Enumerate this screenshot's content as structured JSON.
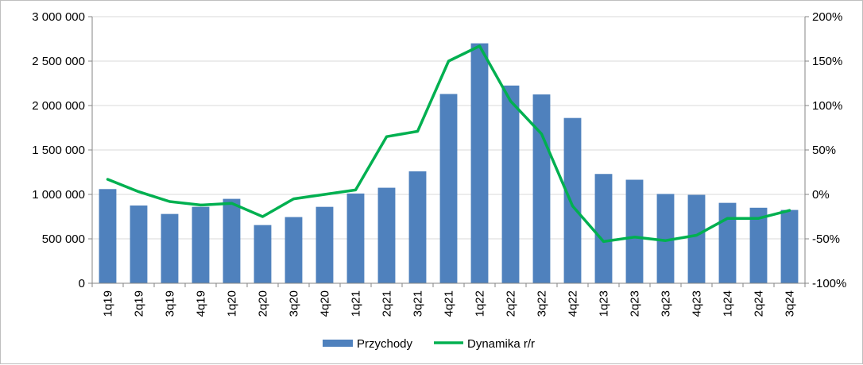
{
  "chart_data": {
    "type": "bar",
    "title": "",
    "xlabel": "",
    "ylabel": "",
    "categories": [
      "1q19",
      "2q19",
      "3q19",
      "4q19",
      "1q20",
      "2q20",
      "3q20",
      "4q20",
      "1q21",
      "2q21",
      "3q21",
      "4q21",
      "1q22",
      "2q22",
      "3q22",
      "4q22",
      "1q23",
      "2q23",
      "3q23",
      "4q23",
      "1q24",
      "2q24",
      "3q24"
    ],
    "ylim": [
      0,
      3000000
    ],
    "y2lim": [
      -100,
      200
    ],
    "y_ticks": [
      "0",
      "500 000",
      "1 000 000",
      "1 500 000",
      "2 000 000",
      "2 500 000",
      "3 000 000"
    ],
    "y2_ticks": [
      "-100%",
      "-50%",
      "0%",
      "50%",
      "100%",
      "150%",
      "200%"
    ],
    "grid": true,
    "legend_position": "bottom",
    "series": [
      {
        "name": "Przychody",
        "type": "bar",
        "axis": "left",
        "color": "#4f81bd",
        "values": [
          1060000,
          875000,
          780000,
          860000,
          950000,
          655000,
          745000,
          860000,
          1010000,
          1075000,
          1260000,
          2130000,
          2700000,
          2225000,
          2125000,
          1860000,
          1230000,
          1165000,
          1005000,
          995000,
          905000,
          850000,
          825000
        ]
      },
      {
        "name": "Dynamika r/r",
        "type": "line",
        "axis": "right",
        "color": "#00b050",
        "values": [
          17,
          3,
          -8,
          -12,
          -10,
          -25,
          -5,
          0,
          5,
          65,
          71,
          150,
          167,
          105,
          68,
          -13,
          -53,
          -48,
          -52,
          -46,
          -27,
          -27,
          -18
        ]
      }
    ]
  }
}
